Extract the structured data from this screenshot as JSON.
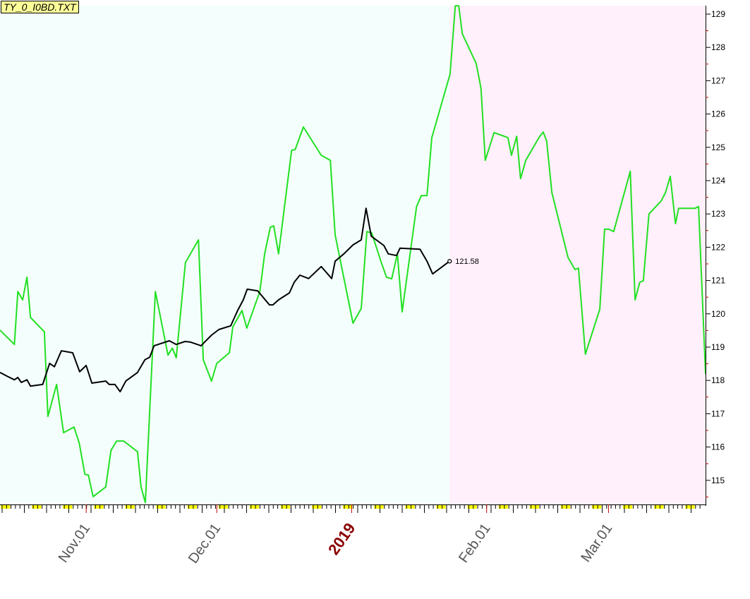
{
  "chart_data": {
    "type": "line",
    "title": "TY_0_I0BD.TXT",
    "x_unit": "days since 2018-11-01",
    "xlim": [
      -19.8,
      142.3
    ],
    "ylim": [
      114.3,
      129.25
    ],
    "y_ticks": [
      115,
      116,
      117,
      118,
      119,
      120,
      121,
      122,
      123,
      124,
      125,
      126,
      127,
      128,
      129
    ],
    "x_ticks": [
      {
        "label": "Nov.01",
        "day": 0,
        "year": false
      },
      {
        "label": "Dec.01",
        "day": 30,
        "year": false
      },
      {
        "label": "2019",
        "day": 61,
        "year": true
      },
      {
        "label": "Feb.01",
        "day": 92,
        "year": false
      },
      {
        "label": "Mar.01",
        "day": 120,
        "year": false
      }
    ],
    "shaded_regions": [
      {
        "from": -19.8,
        "to": 83.5,
        "color": "#f4fffd"
      },
      {
        "from": 83.5,
        "to": 142.3,
        "color": "#fff0fb"
      }
    ],
    "last_value_label": "121.58",
    "series": [
      {
        "name": "green",
        "color": "#22e022",
        "points": [
          [
            -19.8,
            119.51
          ],
          [
            -16.5,
            119.08
          ],
          [
            -15.7,
            120.67
          ],
          [
            -14.6,
            120.42
          ],
          [
            -13.6,
            121.1
          ],
          [
            -12.8,
            119.89
          ],
          [
            -9.6,
            119.46
          ],
          [
            -8.8,
            116.92
          ],
          [
            -6.8,
            117.88
          ],
          [
            -5.2,
            116.43
          ],
          [
            -2.8,
            116.6
          ],
          [
            -1.6,
            116.12
          ],
          [
            -0.3,
            115.18
          ],
          [
            0.5,
            115.16
          ],
          [
            1.6,
            114.51
          ],
          [
            4.5,
            114.8
          ],
          [
            5.7,
            115.9
          ],
          [
            7.0,
            116.18
          ],
          [
            8.6,
            116.18
          ],
          [
            11.8,
            115.86
          ],
          [
            12.6,
            114.8
          ],
          [
            13.6,
            114.33
          ],
          [
            15.9,
            120.67
          ],
          [
            18.8,
            118.76
          ],
          [
            19.8,
            118.97
          ],
          [
            20.7,
            118.68
          ],
          [
            22.8,
            121.54
          ],
          [
            25.8,
            122.22
          ],
          [
            26.9,
            118.62
          ],
          [
            28.8,
            117.98
          ],
          [
            30.0,
            118.51
          ],
          [
            32.9,
            118.83
          ],
          [
            33.7,
            119.61
          ],
          [
            35.8,
            120.1
          ],
          [
            36.9,
            119.57
          ],
          [
            39.9,
            120.67
          ],
          [
            41.0,
            121.8
          ],
          [
            42.3,
            122.6
          ],
          [
            43.1,
            122.64
          ],
          [
            44.2,
            121.8
          ],
          [
            47.2,
            124.91
          ],
          [
            48.0,
            124.93
          ],
          [
            49.9,
            125.61
          ],
          [
            54.0,
            124.76
          ],
          [
            56.1,
            124.61
          ],
          [
            57.2,
            122.37
          ],
          [
            61.3,
            119.72
          ],
          [
            63.2,
            120.16
          ],
          [
            64.5,
            122.47
          ],
          [
            65.6,
            122.43
          ],
          [
            67.7,
            121.58
          ],
          [
            69.0,
            121.1
          ],
          [
            70.2,
            121.05
          ],
          [
            71.5,
            121.8
          ],
          [
            72.6,
            120.06
          ],
          [
            75.9,
            123.22
          ],
          [
            77.0,
            123.55
          ],
          [
            78.3,
            123.55
          ],
          [
            79.4,
            125.29
          ],
          [
            83.6,
            127.2
          ],
          [
            84.8,
            129.25
          ],
          [
            85.6,
            129.25
          ],
          [
            86.4,
            128.41
          ],
          [
            89.6,
            127.52
          ],
          [
            90.7,
            126.78
          ],
          [
            91.7,
            124.61
          ],
          [
            93.7,
            125.44
          ],
          [
            96.9,
            125.29
          ],
          [
            97.7,
            124.76
          ],
          [
            98.9,
            125.33
          ],
          [
            99.8,
            124.06
          ],
          [
            101.0,
            124.61
          ],
          [
            104.2,
            125.33
          ],
          [
            105.0,
            125.46
          ],
          [
            105.8,
            125.19
          ],
          [
            107.0,
            123.64
          ],
          [
            110.7,
            121.69
          ],
          [
            112.3,
            121.33
          ],
          [
            113.1,
            121.37
          ],
          [
            114.7,
            118.79
          ],
          [
            118.0,
            120.14
          ],
          [
            119.1,
            122.54
          ],
          [
            120.1,
            122.54
          ],
          [
            121.2,
            122.47
          ],
          [
            125.0,
            124.28
          ],
          [
            126.1,
            120.42
          ],
          [
            127.2,
            120.95
          ],
          [
            128.0,
            120.99
          ],
          [
            129.3,
            123.0
          ],
          [
            132.1,
            123.39
          ],
          [
            133.1,
            123.64
          ],
          [
            134.2,
            124.13
          ],
          [
            135.4,
            122.71
          ],
          [
            136.1,
            123.17
          ],
          [
            139.9,
            123.17
          ],
          [
            140.7,
            123.22
          ],
          [
            142.3,
            118.19
          ]
        ]
      },
      {
        "name": "black",
        "color": "#000000",
        "points": [
          [
            -19.8,
            118.24
          ],
          [
            -18.2,
            118.13
          ],
          [
            -16.5,
            118.02
          ],
          [
            -15.7,
            118.09
          ],
          [
            -14.9,
            117.94
          ],
          [
            -13.6,
            118.02
          ],
          [
            -12.8,
            117.83
          ],
          [
            -10.0,
            117.88
          ],
          [
            -8.4,
            118.51
          ],
          [
            -7.3,
            118.41
          ],
          [
            -5.7,
            118.89
          ],
          [
            -3.1,
            118.83
          ],
          [
            -1.5,
            118.26
          ],
          [
            0,
            118.45
          ],
          [
            1.3,
            117.92
          ],
          [
            4.5,
            117.98
          ],
          [
            5.3,
            117.88
          ],
          [
            6.6,
            117.88
          ],
          [
            7.8,
            117.66
          ],
          [
            9.1,
            117.98
          ],
          [
            11.8,
            118.24
          ],
          [
            13.5,
            118.62
          ],
          [
            14.6,
            118.7
          ],
          [
            15.6,
            119.04
          ],
          [
            19.1,
            119.19
          ],
          [
            20.7,
            119.08
          ],
          [
            22.7,
            119.17
          ],
          [
            24.0,
            119.15
          ],
          [
            26.4,
            119.04
          ],
          [
            27.2,
            119.15
          ],
          [
            28.8,
            119.36
          ],
          [
            30.5,
            119.53
          ],
          [
            33.2,
            119.64
          ],
          [
            34.8,
            120.1
          ],
          [
            36.1,
            120.42
          ],
          [
            37.0,
            120.74
          ],
          [
            39.4,
            120.69
          ],
          [
            40.5,
            120.52
          ],
          [
            42.1,
            120.27
          ],
          [
            42.9,
            120.27
          ],
          [
            44.2,
            120.42
          ],
          [
            46.7,
            120.63
          ],
          [
            47.8,
            120.95
          ],
          [
            49.1,
            121.16
          ],
          [
            51.1,
            121.06
          ],
          [
            54.0,
            121.42
          ],
          [
            56.4,
            121.06
          ],
          [
            57.2,
            121.58
          ],
          [
            59.2,
            121.8
          ],
          [
            61.3,
            122.07
          ],
          [
            63.2,
            122.22
          ],
          [
            64.3,
            123.17
          ],
          [
            65.5,
            122.33
          ],
          [
            68.4,
            122.05
          ],
          [
            69.4,
            121.8
          ],
          [
            71.3,
            121.75
          ],
          [
            72.1,
            121.97
          ],
          [
            76.7,
            121.94
          ],
          [
            78.3,
            121.58
          ],
          [
            79.6,
            121.2
          ],
          [
            83.5,
            121.58
          ]
        ]
      }
    ]
  }
}
